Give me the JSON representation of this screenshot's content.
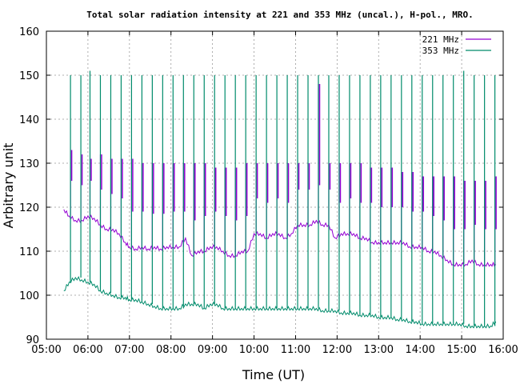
{
  "chart_data": {
    "type": "line",
    "title": "Total solar radiation intensity at 221 and 353 MHz (uncal.), H-pol., MRO.",
    "xlabel": "Time (UT)",
    "ylabel": "Arbitrary unit",
    "xlim": [
      "05:00",
      "16:00"
    ],
    "ylim": [
      90,
      160
    ],
    "x_ticks": [
      "05:00",
      "06:00",
      "07:00",
      "08:00",
      "09:00",
      "10:00",
      "11:00",
      "12:00",
      "13:00",
      "14:00",
      "15:00",
      "16:00"
    ],
    "y_ticks": [
      "90",
      "100",
      "110",
      "120",
      "130",
      "140",
      "150",
      "160"
    ],
    "grid": true,
    "legend_position": "top-right",
    "x_unit": "hours UT",
    "series": [
      {
        "name": "221 MHz",
        "color": "#9400d3",
        "x": [
          5.42,
          5.55,
          5.7,
          5.85,
          6.0,
          6.15,
          6.3,
          6.45,
          6.6,
          6.75,
          6.9,
          7.0,
          7.15,
          7.3,
          7.45,
          7.6,
          7.75,
          7.9,
          8.05,
          8.2,
          8.35,
          8.5,
          8.65,
          8.8,
          8.95,
          9.1,
          9.25,
          9.4,
          9.55,
          9.7,
          9.85,
          10.0,
          10.15,
          10.3,
          10.45,
          10.6,
          10.75,
          10.9,
          11.05,
          11.2,
          11.35,
          11.5,
          11.65,
          11.8,
          11.95,
          12.1,
          12.25,
          12.4,
          12.55,
          12.7,
          12.85,
          13.0,
          13.15,
          13.3,
          13.45,
          13.6,
          13.75,
          13.9,
          14.05,
          14.2,
          14.35,
          14.5,
          14.65,
          14.8,
          14.95,
          15.1,
          15.25,
          15.4,
          15.55,
          15.7,
          15.82
        ],
        "values": [
          119.5,
          118,
          117,
          117,
          118,
          117.5,
          116,
          115,
          115,
          114,
          112,
          111,
          110.5,
          111,
          110.5,
          111,
          110.5,
          111,
          111,
          111,
          113,
          109,
          110,
          110,
          111,
          111,
          110,
          109,
          109,
          110,
          110,
          114,
          114,
          113,
          114,
          114,
          113,
          114,
          116,
          116,
          116,
          117,
          116,
          116,
          113,
          114,
          114,
          114,
          113,
          113,
          112,
          112,
          112,
          112,
          112,
          112,
          111,
          111,
          111,
          110,
          110,
          109,
          108,
          107,
          107,
          107,
          108,
          107,
          107,
          107,
          107
        ]
      },
      {
        "name": "353 MHz",
        "color": "#008b6b",
        "x": [
          5.42,
          5.55,
          5.7,
          5.85,
          6.0,
          6.15,
          6.3,
          6.45,
          6.6,
          6.75,
          6.9,
          7.0,
          7.15,
          7.3,
          7.45,
          7.6,
          7.75,
          7.9,
          8.05,
          8.2,
          8.35,
          8.5,
          8.65,
          8.8,
          8.95,
          9.1,
          9.25,
          9.4,
          9.55,
          9.7,
          9.85,
          10.0,
          10.15,
          10.3,
          10.45,
          10.6,
          10.75,
          10.9,
          11.05,
          11.2,
          11.35,
          11.5,
          11.65,
          11.8,
          11.95,
          12.1,
          12.25,
          12.4,
          12.55,
          12.7,
          12.85,
          13.0,
          13.15,
          13.3,
          13.45,
          13.6,
          13.75,
          13.9,
          14.05,
          14.2,
          14.35,
          14.5,
          14.65,
          14.8,
          14.95,
          15.1,
          15.25,
          15.4,
          15.55,
          15.7,
          15.82
        ],
        "values": [
          101,
          103,
          104,
          103.5,
          103,
          102.5,
          101,
          100.5,
          100,
          99.5,
          99.5,
          99,
          99,
          98.5,
          98,
          97.5,
          97,
          97,
          97,
          97,
          98,
          98,
          98,
          97,
          98,
          98,
          97,
          97,
          97,
          97,
          97,
          97,
          97,
          97,
          97,
          97,
          97,
          97,
          97,
          97,
          97,
          97,
          96.5,
          96.5,
          96.5,
          96,
          96,
          96,
          95.5,
          95.5,
          95.5,
          95,
          95,
          95,
          94.5,
          94.5,
          94,
          94,
          93.5,
          93.5,
          93.5,
          93.5,
          93.5,
          93.5,
          93.5,
          93,
          93,
          93,
          93,
          93,
          94
        ]
      }
    ],
    "spikes": {
      "x": [
        5.58,
        5.83,
        6.05,
        6.3,
        6.55,
        6.8,
        7.05,
        7.3,
        7.55,
        7.8,
        8.05,
        8.3,
        8.55,
        8.8,
        9.05,
        9.3,
        9.55,
        9.8,
        10.05,
        10.3,
        10.55,
        10.8,
        11.05,
        11.3,
        11.55,
        11.8,
        12.05,
        12.3,
        12.55,
        12.8,
        13.05,
        13.3,
        13.55,
        13.8,
        14.05,
        14.3,
        14.55,
        14.8,
        15.05,
        15.3,
        15.55,
        15.8
      ],
      "peak_353": [
        150,
        150,
        151,
        150,
        150,
        150,
        150,
        150,
        150,
        150,
        150,
        150,
        150,
        150,
        150,
        150,
        150,
        150,
        150,
        150,
        150,
        150,
        150,
        150,
        150,
        150,
        150,
        150,
        150,
        150,
        150,
        150,
        150,
        150,
        150,
        150,
        150,
        150,
        151,
        150,
        150,
        150
      ],
      "peak_221": [
        133,
        132,
        131,
        132,
        131,
        131,
        131,
        130,
        130,
        130,
        130,
        130,
        130,
        130,
        129,
        129,
        129,
        130,
        130,
        130,
        130,
        130,
        130,
        130,
        148,
        130,
        130,
        130,
        130,
        129,
        129,
        129,
        128,
        128,
        127,
        127,
        127,
        127,
        126,
        126,
        126,
        127
      ]
    }
  }
}
